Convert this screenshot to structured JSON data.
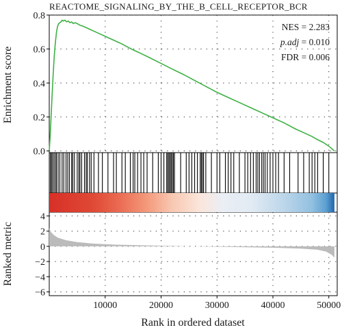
{
  "chart_data": {
    "type": "line",
    "title": "REACTOME_SIGNALING_BY_THE_B_CELL_RECEPTOR_BCR",
    "xlabel": "Rank in ordered dataset",
    "xlim": [
      0,
      51500
    ],
    "x_ticks": [
      10000,
      20000,
      30000,
      40000,
      50000
    ],
    "grid": true,
    "panels": {
      "enrichment": {
        "ylabel": "Enrichment score",
        "ylim": [
          -0.01,
          0.8
        ],
        "y_ticks": [
          0.0,
          0.2,
          0.4,
          0.6,
          0.8
        ],
        "line_color": "#3cb043",
        "series": [
          {
            "x": [
              0,
              150,
              300,
              500,
              700,
              900,
              1100,
              1300,
              1500,
              1700,
              1900,
              2100,
              2300,
              2500,
              2800,
              3100,
              3400,
              3700,
              4000,
              4300,
              4600,
              5000,
              5500,
              6000,
              7000,
              8000,
              9000,
              10000,
              11000,
              12000,
              13000,
              14000,
              15000,
              16000,
              18000,
              20000,
              22000,
              24000,
              26000,
              28000,
              30000,
              32000,
              34000,
              36000,
              38000,
              40000,
              42000,
              44000,
              46000,
              47000,
              48000,
              49000,
              50000,
              51000
            ],
            "y": [
              0.0,
              0.08,
              0.18,
              0.32,
              0.45,
              0.56,
              0.64,
              0.7,
              0.735,
              0.75,
              0.755,
              0.76,
              0.77,
              0.765,
              0.77,
              0.76,
              0.765,
              0.755,
              0.76,
              0.75,
              0.755,
              0.75,
              0.74,
              0.735,
              0.72,
              0.705,
              0.69,
              0.675,
              0.66,
              0.645,
              0.63,
              0.612,
              0.595,
              0.58,
              0.548,
              0.515,
              0.482,
              0.45,
              0.415,
              0.38,
              0.345,
              0.315,
              0.285,
              0.255,
              0.225,
              0.195,
              0.165,
              0.13,
              0.1,
              0.085,
              0.066,
              0.05,
              0.028,
              0.0
            ]
          }
        ],
        "annotations": [
          {
            "label": "NES",
            "value": "2.283"
          },
          {
            "label": "p.adj",
            "value": "0.010"
          },
          {
            "label": "FDR",
            "value": "0.006"
          }
        ]
      },
      "hits": {
        "positions": [
          200,
          400,
          600,
          850,
          1100,
          1300,
          1600,
          1900,
          2300,
          2600,
          3000,
          3300,
          3600,
          4000,
          4200,
          4500,
          5000,
          5300,
          5500,
          5800,
          6300,
          6600,
          6800,
          7200,
          7500,
          8000,
          8800,
          9500,
          10500,
          11500,
          12000,
          13000,
          13600,
          14500,
          15000,
          15300,
          15800,
          16400,
          16900,
          17500,
          18500,
          19500,
          20000,
          20500,
          21000,
          21200,
          21400,
          21600,
          21800,
          22000,
          22200,
          22400,
          23500,
          24500,
          25000,
          25500,
          26000,
          26500,
          27000,
          27200,
          27400,
          27600,
          28000,
          29000,
          30000,
          30500,
          31500,
          32000,
          32500,
          33000,
          34000,
          35000,
          35500,
          36000,
          36500,
          37000,
          37300,
          37600,
          38000,
          38300,
          38600,
          39000,
          39500,
          40000,
          40500,
          41000,
          42000,
          43000,
          44500,
          45500,
          46500,
          47000,
          47500,
          48000,
          49000,
          50000
        ]
      },
      "ranked_metric": {
        "ylabel": "Ranked metric",
        "ylim": [
          -6.5,
          4.5
        ],
        "y_ticks": [
          4,
          2,
          0,
          -2,
          -4,
          -6
        ],
        "fill_color": "#bbbbbb",
        "x": [
          0,
          300,
          800,
          1500,
          3000,
          5000,
          8000,
          12000,
          20000,
          30000,
          40000,
          45000,
          48000,
          49500,
          50500,
          51000
        ],
        "y": [
          2.4,
          1.9,
          1.5,
          1.15,
          0.8,
          0.55,
          0.35,
          0.22,
          0.08,
          -0.05,
          -0.18,
          -0.3,
          -0.45,
          -0.7,
          -1.1,
          -1.5
        ]
      },
      "heat_bar": {
        "stops": [
          {
            "x": 0,
            "color": "#d73027"
          },
          {
            "x": 8000,
            "color": "#e04a36"
          },
          {
            "x": 12500,
            "color": "#ea6b52"
          },
          {
            "x": 17500,
            "color": "#f49a7c"
          },
          {
            "x": 22000,
            "color": "#f8c8b2"
          },
          {
            "x": 27000,
            "color": "#fbe6dc"
          },
          {
            "x": 31000,
            "color": "#eaeef5"
          },
          {
            "x": 36000,
            "color": "#e2ebf3"
          },
          {
            "x": 42000,
            "color": "#bcd6ea"
          },
          {
            "x": 47000,
            "color": "#92c0e0"
          },
          {
            "x": 49500,
            "color": "#5b9fd1"
          },
          {
            "x": 51000,
            "color": "#2166ac"
          }
        ]
      }
    }
  }
}
